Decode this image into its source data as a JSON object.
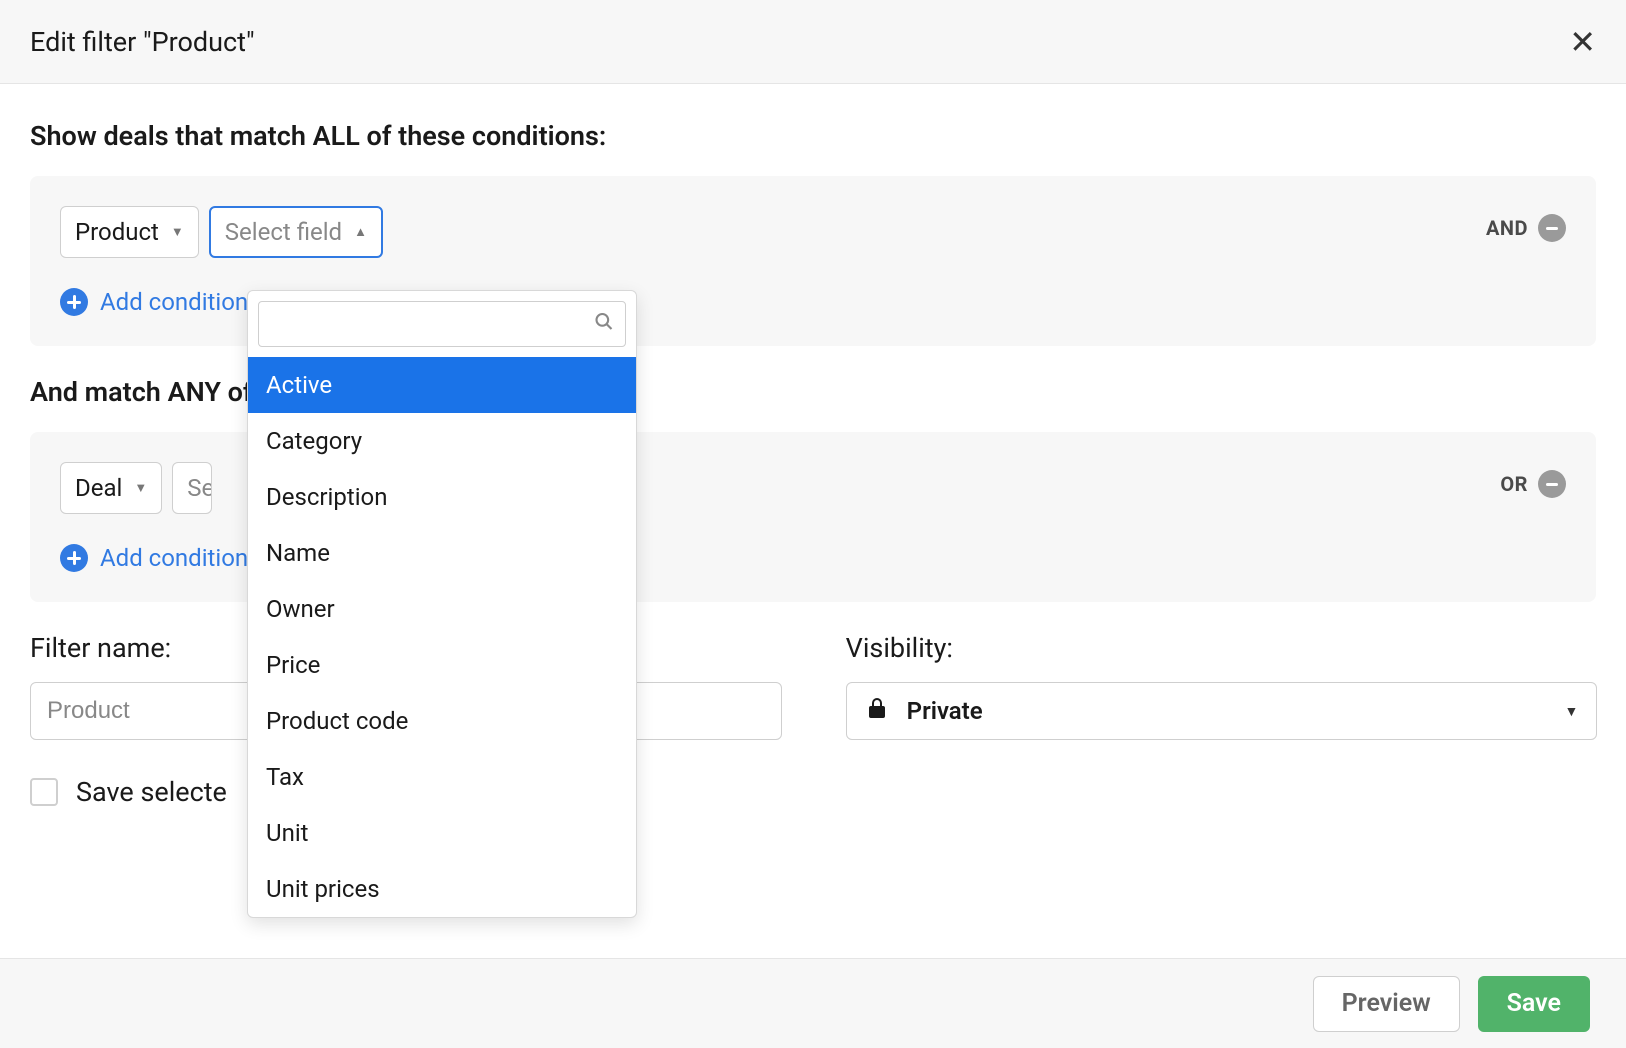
{
  "header": {
    "title": "Edit filter \"Product\""
  },
  "sections": {
    "all_heading": "Show deals that match ALL of these conditions:",
    "any_heading": "And match ANY of these conditions:"
  },
  "condition_all": {
    "entity_select": "Product",
    "field_select_placeholder": "Select field",
    "operator": "AND",
    "add_label": "Add condition"
  },
  "condition_any": {
    "entity_select": "Deal",
    "field_select_placeholder_visible": "Se",
    "operator": "OR",
    "add_label": "Add condition"
  },
  "dropdown": {
    "search_placeholder": "",
    "options": [
      {
        "label": "Active"
      },
      {
        "label": "Category"
      },
      {
        "label": "Description"
      },
      {
        "label": "Name"
      },
      {
        "label": "Owner"
      },
      {
        "label": "Price"
      },
      {
        "label": "Product code"
      },
      {
        "label": "Tax"
      },
      {
        "label": "Unit"
      },
      {
        "label": "Unit prices"
      }
    ],
    "highlighted_index": 0
  },
  "filter_name": {
    "label": "Filter name:",
    "value": "Product"
  },
  "visibility": {
    "label": "Visibility:",
    "value": "Private"
  },
  "save_selected": {
    "label_visible": "Save selecte",
    "checked": false
  },
  "footer": {
    "preview": "Preview",
    "save": "Save"
  },
  "colors": {
    "accent_blue": "#317ae2",
    "highlight_blue": "#1a73e8",
    "save_green": "#51b36a",
    "panel_bg": "#f7f7f7",
    "border": "#cfcfcf"
  }
}
